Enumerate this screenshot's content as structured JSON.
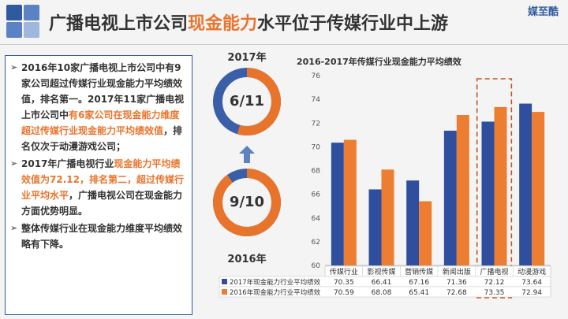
{
  "header": {
    "title_part1": "广播电视上市公司",
    "title_highlight": "现金能力",
    "title_part2": "水平位于传媒行业中上游",
    "brand": "媒至酷"
  },
  "text_panel": {
    "p1_a": "2016年10家广播电视上市公司中有9家公司超过传媒行业现金能力平均绩效值，排名第一。2017年11家广播电视上市公司中",
    "p1_b": "有6家公司在现金能力维度超过传媒行业现金能力平均绩效值",
    "p1_c": "，排名仅次于动漫游戏公司；",
    "p2_a": "2017年广播电视行业",
    "p2_b": "现金能力平均绩效值为72.12，排名第二，超过传媒行业平均水平",
    "p2_c": "，广播电视公司在现金能力方面优势明显。",
    "p3": "整体传媒行业在现金能力维度平均绩效略有下降。",
    "bullet": "➢"
  },
  "rings": {
    "top_label": "2017年",
    "top_value": "6/11",
    "top_fraction": 0.5454,
    "bottom_label": "2016年",
    "bottom_value": "9/10",
    "bottom_fraction": 0.9,
    "fill_color": "#e8742c",
    "track_color": "#3a5fa8"
  },
  "chart_data": {
    "type": "bar",
    "title": "2016-2017年传媒行业现金能力平均绩效",
    "categories": [
      "传媒行业",
      "影视传媒",
      "营销传媒",
      "新闻出版",
      "广播电视",
      "动漫游戏"
    ],
    "series": [
      {
        "name": "2017年现金能力行业平均绩效",
        "color": "#2f4f9e",
        "values": [
          70.35,
          66.41,
          67.16,
          71.36,
          72.12,
          73.64
        ],
        "labels": [
          "70.35",
          "66.41",
          "67.16",
          "71.36",
          "72.12",
          "73.64"
        ]
      },
      {
        "name": "2016年现金能力行业平均绩效",
        "color": "#ed7d31",
        "values": [
          70.59,
          68.08,
          65.41,
          72.68,
          73.35,
          72.94
        ],
        "labels": [
          "70.59",
          "68.08",
          "65.41",
          "72.68",
          "73.35",
          "72.94"
        ]
      }
    ],
    "ylim": [
      60,
      76
    ],
    "yticks": [
      "60",
      "62",
      "64",
      "66",
      "68",
      "70",
      "72",
      "74",
      "76"
    ],
    "highlight_category": "广播电视",
    "grid": false
  }
}
